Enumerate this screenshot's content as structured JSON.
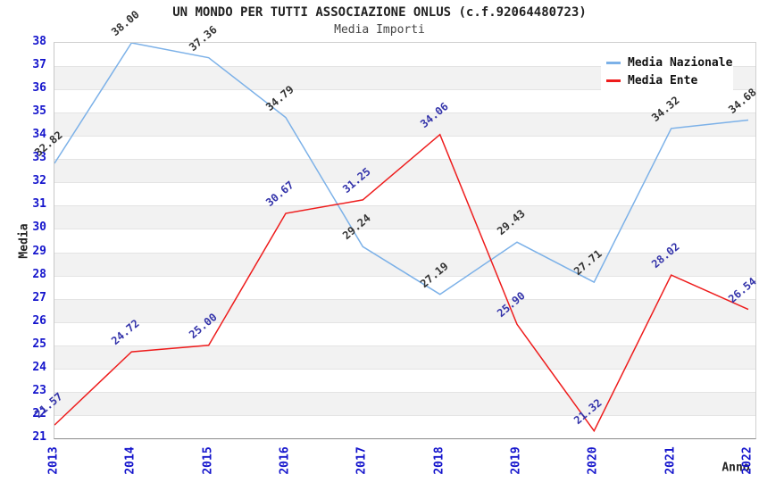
{
  "header": {
    "title": "UN MONDO PER TUTTI ASSOCIAZIONE ONLUS (c.f.92064480723)",
    "subtitle": "Media Importi"
  },
  "axes": {
    "x_label": "Anno",
    "y_label": "Media",
    "tick_color": "#1414cc"
  },
  "legend": {
    "items": [
      {
        "label": "Media Nazionale",
        "color": "#7cb1e8"
      },
      {
        "label": "Media Ente",
        "color": "#ee1c1c"
      }
    ]
  },
  "chart_data": {
    "type": "line",
    "title": "UN MONDO PER TUTTI ASSOCIAZIONE ONLUS (c.f.92064480723)",
    "subtitle": "Media Importi",
    "xlabel": "Anno",
    "ylabel": "Media",
    "x": [
      2013,
      2014,
      2015,
      2016,
      2017,
      2018,
      2019,
      2020,
      2021,
      2022
    ],
    "series": [
      {
        "name": "Media Nazionale",
        "color": "#7cb1e8",
        "label_color": "#333333",
        "values": [
          32.82,
          38.0,
          37.36,
          34.79,
          29.24,
          27.19,
          29.43,
          27.71,
          34.32,
          34.68
        ]
      },
      {
        "name": "Media Ente",
        "color": "#ee1c1c",
        "label_color": "#3434aa",
        "values": [
          21.57,
          24.72,
          25.0,
          30.67,
          31.25,
          34.06,
          25.9,
          21.32,
          28.02,
          26.54
        ]
      }
    ],
    "ylim": [
      21,
      38
    ],
    "y_tick_step": 1,
    "grid": "horizontal-bands-alternating",
    "band_colors": [
      "#ffffff",
      "#f2f2f2"
    ],
    "legend_position": "top-right",
    "point_labels": "value-2-decimals-rotated"
  }
}
